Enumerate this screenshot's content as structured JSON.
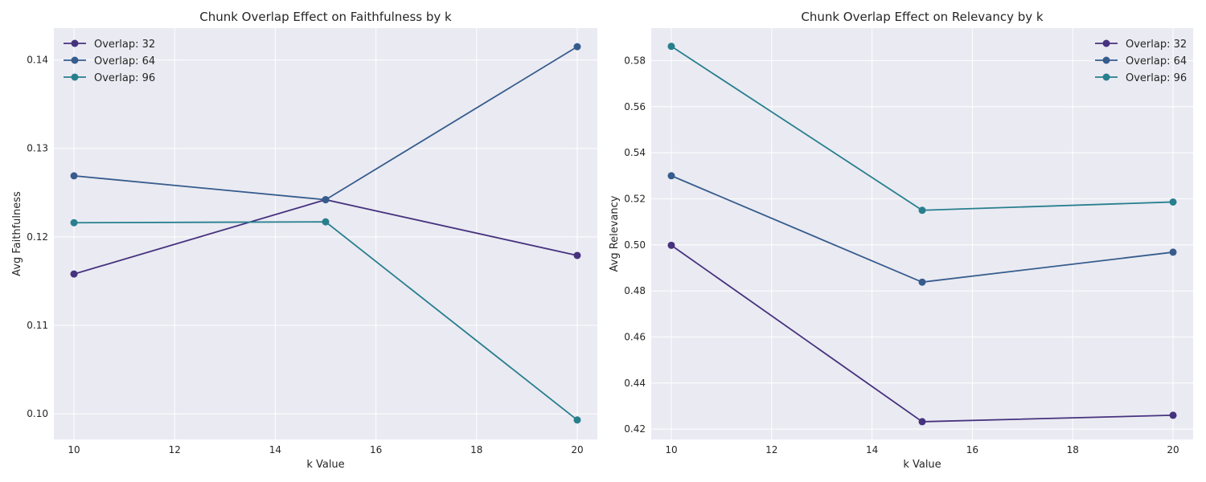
{
  "chart_data": [
    {
      "type": "line",
      "title": "Chunk Overlap Effect on Faithfulness by k",
      "xlabel": "k Value",
      "ylabel": "Avg Faithfulness",
      "x": [
        10,
        15,
        20
      ],
      "xlim": [
        9.6,
        20.4
      ],
      "ylim": [
        0.0971,
        0.1436
      ],
      "xticks": [
        10,
        12,
        14,
        16,
        18,
        20
      ],
      "yticks": [
        0.1,
        0.11,
        0.12,
        0.13,
        0.14
      ],
      "ytick_decimals": 2,
      "grid": true,
      "legend_position": "top-left",
      "series": [
        {
          "name": "Overlap: 32",
          "color": "#46327e",
          "values": [
            0.1158,
            0.1242,
            0.1179
          ]
        },
        {
          "name": "Overlap: 64",
          "color": "#365c8d",
          "values": [
            0.1269,
            0.1242,
            0.1415
          ]
        },
        {
          "name": "Overlap: 96",
          "color": "#277f8e",
          "values": [
            0.1216,
            0.1217,
            0.0993
          ]
        }
      ]
    },
    {
      "type": "line",
      "title": "Chunk Overlap Effect on Relevancy by k",
      "xlabel": "k Value",
      "ylabel": "Avg Relevancy",
      "x": [
        10,
        15,
        20
      ],
      "xlim": [
        9.6,
        20.4
      ],
      "ylim": [
        0.4155,
        0.5941
      ],
      "xticks": [
        10,
        12,
        14,
        16,
        18,
        20
      ],
      "yticks": [
        0.42,
        0.44,
        0.46,
        0.48,
        0.5,
        0.52,
        0.54,
        0.56,
        0.58
      ],
      "ytick_decimals": 2,
      "grid": true,
      "legend_position": "top-right",
      "series": [
        {
          "name": "Overlap: 32",
          "color": "#46327e",
          "values": [
            0.4998,
            0.4232,
            0.426
          ]
        },
        {
          "name": "Overlap: 64",
          "color": "#365c8d",
          "values": [
            0.53,
            0.4838,
            0.4968
          ]
        },
        {
          "name": "Overlap: 96",
          "color": "#277f8e",
          "values": [
            0.5862,
            0.515,
            0.5186
          ]
        }
      ]
    }
  ]
}
